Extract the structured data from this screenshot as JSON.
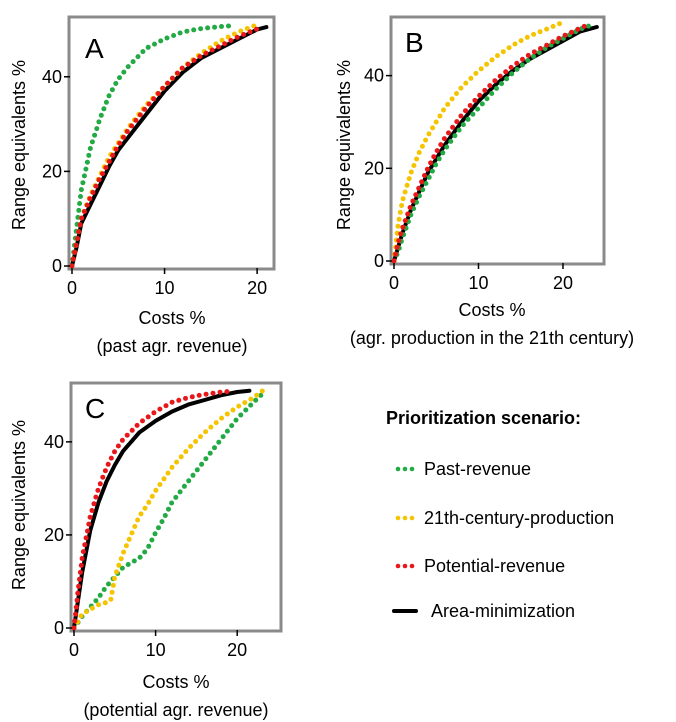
{
  "panels": [
    {
      "letter": "A",
      "xlabel": "Costs %",
      "xsublabel": "(past agr. revenue)",
      "ylabel": "Range equivalents %"
    },
    {
      "letter": "B",
      "xlabel": "Costs %",
      "xsublabel": "(agr. production in the 21th century)",
      "ylabel": "Range equivalents %"
    },
    {
      "letter": "C",
      "xlabel": "Costs %",
      "xsublabel": "(potential agr. revenue)",
      "ylabel": "Range equivalents %"
    }
  ],
  "legend": {
    "title": "Prioritization scenario:",
    "items": [
      {
        "label": "Past-revenue",
        "color": "#22aa44",
        "style": "dotted"
      },
      {
        "label": "21th-century-production",
        "color": "#f5c400",
        "style": "dotted"
      },
      {
        "label": "Potential-revenue",
        "color": "#e8171a",
        "style": "dotted"
      },
      {
        "label": "Area-minimization",
        "color": "#000000",
        "style": "solid"
      }
    ]
  },
  "chart_data": [
    {
      "type": "line",
      "panel": "A",
      "xlabel": "Costs %",
      "ylabel": "Range equivalents %",
      "xlim": [
        0,
        21.5
      ],
      "ylim": [
        0,
        52
      ],
      "xticks": [
        0,
        10,
        20
      ],
      "yticks": [
        0,
        20,
        40
      ],
      "series": [
        {
          "name": "Past-revenue",
          "x": [
            0,
            0.5,
            1,
            2,
            3,
            4,
            5,
            6,
            8,
            10,
            12,
            14,
            16,
            17.5
          ],
          "y": [
            0,
            8,
            16,
            25,
            31,
            36,
            39.5,
            42,
            46,
            48,
            49.5,
            50.2,
            50.6,
            50.8
          ]
        },
        {
          "name": "21th-century-production",
          "x": [
            0,
            0.5,
            1,
            2,
            3,
            4,
            5,
            6,
            8,
            10,
            12,
            14,
            16,
            18,
            20
          ],
          "y": [
            0,
            5,
            10,
            15,
            19,
            23,
            26,
            29,
            34,
            38,
            42,
            45,
            47.5,
            49.5,
            51
          ]
        },
        {
          "name": "Potential-revenue",
          "x": [
            0,
            0.5,
            1,
            2,
            3,
            4,
            5,
            6,
            8,
            10,
            12,
            14,
            16,
            18,
            20.5
          ],
          "y": [
            0,
            5,
            10,
            14.5,
            18.5,
            22,
            25.5,
            28.5,
            33.5,
            38,
            42,
            44.5,
            46.5,
            48.5,
            50.5
          ]
        },
        {
          "name": "Area-minimization",
          "x": [
            0,
            0.5,
            1,
            2,
            3,
            4,
            5,
            6,
            8,
            10,
            12,
            14,
            16,
            18,
            20,
            21
          ],
          "y": [
            0,
            4,
            9,
            13,
            17,
            21,
            24.5,
            27,
            32,
            37,
            41,
            44,
            46,
            48,
            50,
            50.5
          ]
        }
      ]
    },
    {
      "type": "line",
      "panel": "B",
      "xlabel": "Costs %",
      "ylabel": "Range equivalents %",
      "xlim": [
        0,
        24.5
      ],
      "ylim": [
        0,
        52
      ],
      "xticks": [
        0,
        10,
        20
      ],
      "yticks": [
        0,
        20,
        40
      ],
      "series": [
        {
          "name": "Past-revenue",
          "x": [
            0,
            0.5,
            1,
            2,
            3,
            4,
            5,
            6,
            8,
            10,
            12,
            14,
            16,
            18,
            20,
            22,
            23.5
          ],
          "y": [
            0,
            2,
            5,
            10,
            14,
            17.5,
            21,
            24,
            29,
            33,
            37,
            40.5,
            43.5,
            46,
            48,
            50,
            51
          ]
        },
        {
          "name": "21th-century-production",
          "x": [
            0,
            0.5,
            1,
            2,
            3,
            4,
            5,
            6,
            8,
            10,
            12,
            14,
            16,
            18,
            20
          ],
          "y": [
            0,
            8,
            13,
            19,
            23.5,
            27,
            30,
            33,
            37.5,
            41,
            44,
            46.5,
            48.5,
            50,
            51.5
          ]
        },
        {
          "name": "Potential-revenue",
          "x": [
            0,
            0.5,
            1,
            2,
            3,
            4,
            5,
            6,
            8,
            10,
            12,
            14,
            16,
            18,
            20,
            22,
            23
          ],
          "y": [
            0,
            4,
            7,
            12,
            16,
            20,
            23.5,
            26.5,
            31.5,
            35.5,
            39,
            42,
            44.5,
            46.5,
            48.5,
            50.2,
            51
          ]
        },
        {
          "name": "Area-minimization",
          "x": [
            0,
            0.5,
            1,
            2,
            3,
            4,
            5,
            6,
            8,
            10,
            12,
            14,
            16,
            18,
            20,
            22,
            24
          ],
          "y": [
            0,
            3,
            6,
            11,
            15,
            19,
            22,
            25,
            30,
            34.5,
            38,
            41,
            43.5,
            45.5,
            47.5,
            49.5,
            50.5
          ]
        }
      ]
    },
    {
      "type": "line",
      "panel": "C",
      "xlabel": "Costs %",
      "ylabel": "Range equivalents %",
      "xlim": [
        0,
        25
      ],
      "ylim": [
        0,
        52
      ],
      "xticks": [
        0,
        10,
        20
      ],
      "yticks": [
        0,
        20,
        40
      ],
      "series": [
        {
          "name": "Past-revenue",
          "x": [
            0,
            1,
            2,
            3,
            4,
            5,
            6,
            7,
            8,
            9,
            10,
            11,
            12,
            14,
            16,
            18,
            20,
            22,
            23.5
          ],
          "y": [
            0,
            2.5,
            4.5,
            6.5,
            9,
            11,
            13,
            14,
            15,
            17,
            20.5,
            23.5,
            27,
            31.5,
            36,
            40.5,
            45,
            48.5,
            51
          ]
        },
        {
          "name": "21th-century-production",
          "x": [
            0,
            1,
            2,
            3,
            4,
            4.5,
            5,
            6,
            7,
            8,
            9,
            10,
            11,
            12,
            14,
            16,
            18,
            20,
            22,
            23.5
          ],
          "y": [
            0,
            3,
            4,
            5,
            5.5,
            6,
            11,
            16,
            20,
            24,
            26.5,
            29.5,
            32,
            34.5,
            38.5,
            42,
            45,
            47.5,
            49.5,
            51.5
          ]
        },
        {
          "name": "Potential-revenue",
          "x": [
            0,
            0.5,
            1,
            2,
            3,
            4,
            5,
            6,
            8,
            10,
            12,
            14,
            16,
            18,
            19.5
          ],
          "y": [
            0,
            8,
            15,
            24,
            30,
            34.5,
            38,
            40.5,
            44,
            46.5,
            48.5,
            49.5,
            50.2,
            50.7,
            50.9
          ]
        },
        {
          "name": "Area-minimization",
          "x": [
            0,
            0.5,
            1,
            2,
            3,
            4,
            5,
            6,
            8,
            10,
            12,
            14,
            16,
            18,
            20,
            21.5
          ],
          "y": [
            0,
            6,
            12,
            21,
            27,
            31.5,
            35,
            38,
            42,
            44.5,
            46.5,
            48,
            49,
            50,
            50.7,
            51
          ]
        }
      ]
    }
  ]
}
